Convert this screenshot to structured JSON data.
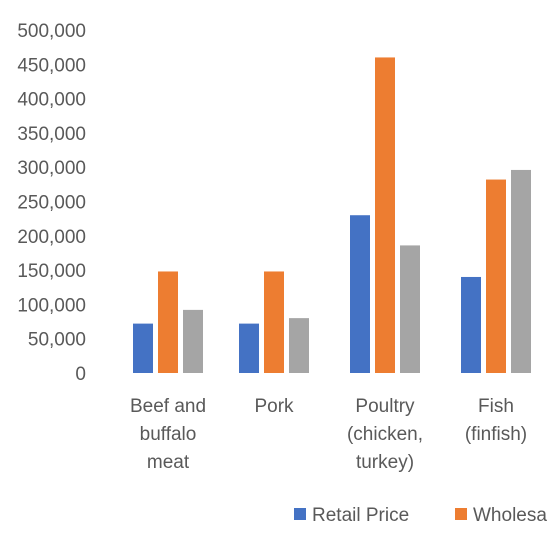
{
  "chart_data": {
    "type": "bar",
    "title": "",
    "xlabel": "",
    "ylabel": "",
    "categories": [
      [
        "Beef and",
        "buffalo",
        "meat"
      ],
      [
        "Pork"
      ],
      [
        "Poultry",
        "(chicken,",
        "turkey)"
      ],
      [
        "Fish",
        "(finfish)"
      ]
    ],
    "series": [
      {
        "name": "Retail Price",
        "color": "#4472C4",
        "values": [
          72000,
          72000,
          230000,
          140000
        ]
      },
      {
        "name": "Wholesale",
        "color": "#ED7D31",
        "values": [
          148000,
          148000,
          460000,
          282000
        ]
      },
      {
        "name": "",
        "color": "#A5A5A5",
        "values": [
          92000,
          80000,
          186000,
          296000
        ]
      }
    ],
    "ylim": [
      0,
      500000
    ],
    "yticks": [
      "0",
      "50,000",
      "100,000",
      "150,000",
      "200,000",
      "250,000",
      "300,000",
      "350,000",
      "400,000",
      "450,000",
      "500,000"
    ],
    "grid": false,
    "legend_position": "bottom"
  }
}
